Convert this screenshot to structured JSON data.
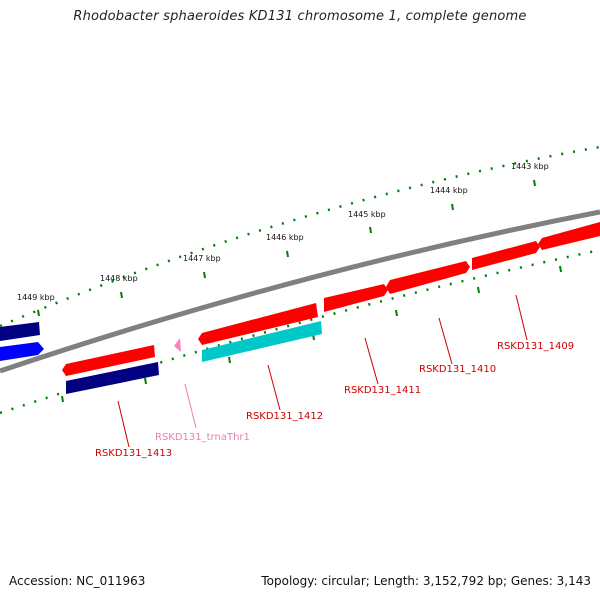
{
  "title": "Rhodobacter sphaeroides KD131 chromosome 1, complete genome",
  "footer": {
    "accession": "Accession: NC_011963",
    "summary": "Topology: circular; Length: 3,152,792 bp; Genes: 3,143"
  },
  "colors": {
    "backbone": "#808080",
    "forward_gene": "#ff0000",
    "reverse_gene": "#000080",
    "forward_other": "#00c8c8",
    "trna": "#ff80c0",
    "blue_gene": "#0000ff",
    "ruler_tick": "#008000",
    "label_red": "#cc0000",
    "label_pink": "#e880b8"
  },
  "scale_labels": [
    "1443 kbp",
    "1444 kbp",
    "1445 kbp",
    "1446 kbp",
    "1447 kbp",
    "1448 kbp",
    "1449 kbp"
  ],
  "genes": [
    {
      "name": "RSKD131_1409",
      "strand": "+",
      "color_key": "forward_gene",
      "label_color_key": "label_red"
    },
    {
      "name": "RSKD131_1410",
      "strand": "+",
      "color_key": "forward_gene",
      "label_color_key": "label_red"
    },
    {
      "name": "RSKD131_1411",
      "strand": "+",
      "color_key": "forward_gene",
      "label_color_key": "label_red"
    },
    {
      "name": "RSKD131_1412",
      "strand": "+",
      "color_key": "forward_gene",
      "label_color_key": "label_red"
    },
    {
      "name": "RSKD131_trnaThr1",
      "strand": "+",
      "color_key": "trna",
      "label_color_key": "label_pink"
    },
    {
      "name": "RSKD131_1413",
      "strand": "+",
      "color_key": "forward_gene",
      "label_color_key": "label_red"
    }
  ]
}
